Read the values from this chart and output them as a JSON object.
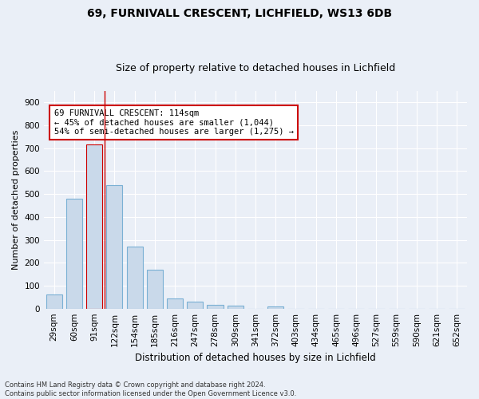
{
  "title1": "69, FURNIVALL CRESCENT, LICHFIELD, WS13 6DB",
  "title2": "Size of property relative to detached houses in Lichfield",
  "xlabel": "Distribution of detached houses by size in Lichfield",
  "ylabel": "Number of detached properties",
  "footnote": "Contains HM Land Registry data © Crown copyright and database right 2024.\nContains public sector information licensed under the Open Government Licence v3.0.",
  "categories": [
    "29sqm",
    "60sqm",
    "91sqm",
    "122sqm",
    "154sqm",
    "185sqm",
    "216sqm",
    "247sqm",
    "278sqm",
    "309sqm",
    "341sqm",
    "372sqm",
    "403sqm",
    "434sqm",
    "465sqm",
    "496sqm",
    "527sqm",
    "559sqm",
    "590sqm",
    "621sqm",
    "652sqm"
  ],
  "values": [
    62,
    480,
    718,
    540,
    270,
    170,
    44,
    30,
    15,
    13,
    0,
    9,
    0,
    0,
    0,
    0,
    0,
    0,
    0,
    0,
    0
  ],
  "bar_color": "#c9d9ea",
  "bar_edge_color": "#7ab0d4",
  "highlight_bar_index": 2,
  "highlight_bar_edge_color": "#cc0000",
  "vline_x": 2.5,
  "vline_color": "#cc0000",
  "annotation_text": "69 FURNIVALL CRESCENT: 114sqm\n← 45% of detached houses are smaller (1,044)\n54% of semi-detached houses are larger (1,275) →",
  "annotation_box_facecolor": "#ffffff",
  "annotation_box_edgecolor": "#cc0000",
  "annotation_fontsize": 7.5,
  "ylim": [
    0,
    950
  ],
  "yticks": [
    0,
    100,
    200,
    300,
    400,
    500,
    600,
    700,
    800,
    900
  ],
  "bg_color": "#eaeff7",
  "plot_bg_color": "#eaeff7",
  "grid_color": "#ffffff",
  "title1_fontsize": 10,
  "title2_fontsize": 9,
  "xlabel_fontsize": 8.5,
  "ylabel_fontsize": 8,
  "tick_fontsize": 7.5,
  "footnote_fontsize": 6
}
